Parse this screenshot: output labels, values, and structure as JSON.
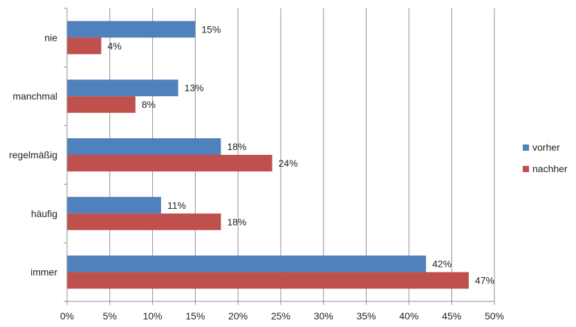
{
  "chart_data": {
    "type": "bar",
    "orientation": "horizontal",
    "categories": [
      "nie",
      "manchmal",
      "regelmäßig",
      "häufig",
      "immer"
    ],
    "series": [
      {
        "name": "vorher",
        "color": "#4f81bd",
        "values": [
          15,
          13,
          18,
          11,
          42
        ],
        "labels": [
          "15%",
          "13%",
          "18%",
          "11%",
          "42%"
        ]
      },
      {
        "name": "nachher",
        "color": "#c0504d",
        "values": [
          4,
          8,
          24,
          18,
          47
        ],
        "labels": [
          "4%",
          "8%",
          "24%",
          "18%",
          "47%"
        ]
      }
    ],
    "xlim": [
      0,
      50
    ],
    "xticks": [
      0,
      5,
      10,
      15,
      20,
      25,
      30,
      35,
      40,
      45,
      50
    ],
    "xtick_labels": [
      "0%",
      "5%",
      "10%",
      "15%",
      "20%",
      "25%",
      "30%",
      "35%",
      "40%",
      "45%",
      "50%"
    ],
    "grid": true,
    "legend": "right",
    "title": "",
    "xlabel": "",
    "ylabel": ""
  }
}
